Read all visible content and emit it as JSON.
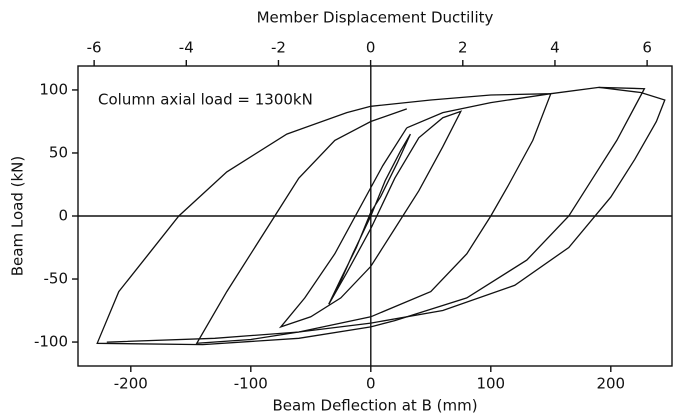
{
  "chart_data": {
    "type": "line",
    "annotation": "Column axial load = 1300kN",
    "xlabel": "Beam Deflection at B (mm)",
    "ylabel": "Beam Load (kN)",
    "x2label": "Member Displacement Ductility",
    "xlim": [
      -244,
      251
    ],
    "ylim": [
      -119,
      119
    ],
    "x2lim": [
      -6.35,
      6.54
    ],
    "xticks": [
      -200,
      -100,
      0,
      100,
      200
    ],
    "yticks": [
      -100,
      -50,
      0,
      50,
      100
    ],
    "x2ticks": [
      -6,
      -4,
      -2,
      0,
      2,
      4,
      6
    ],
    "series": [
      {
        "color": "#111111",
        "x": [
          0,
          12,
          25,
          33,
          22,
          8,
          0,
          -12,
          -25,
          -35,
          -28,
          -15,
          -5,
          0
        ],
        "values": [
          0,
          28,
          52,
          65,
          42,
          15,
          3,
          -25,
          -50,
          -70,
          -58,
          -30,
          -10,
          0
        ]
      },
      {
        "color": "#111111",
        "x": [
          -35,
          -20,
          0,
          20,
          40,
          60,
          75,
          60,
          40,
          20,
          0,
          -25,
          -50,
          -75,
          -55,
          -30,
          -10,
          10,
          30
        ],
        "values": [
          -70,
          -45,
          -10,
          30,
          62,
          78,
          83,
          55,
          20,
          -10,
          -40,
          -65,
          -80,
          -88,
          -65,
          -30,
          5,
          40,
          70
        ]
      },
      {
        "color": "#111111",
        "x": [
          30,
          60,
          100,
          150,
          135,
          115,
          100,
          80,
          50,
          0,
          -60,
          -100,
          -145,
          -120,
          -100,
          -80,
          -60,
          -30,
          0,
          30
        ],
        "values": [
          70,
          82,
          90,
          97,
          60,
          25,
          0,
          -30,
          -60,
          -80,
          -92,
          -98,
          -101,
          -60,
          -30,
          0,
          30,
          60,
          75,
          85
        ]
      },
      {
        "color": "#111111",
        "x": [
          150,
          190,
          228,
          205,
          185,
          165,
          130,
          80,
          20,
          0,
          -60,
          -140,
          -228,
          -210,
          -185,
          -160,
          -120,
          -70,
          -20,
          0,
          50,
          100,
          150
        ],
        "values": [
          97,
          102,
          101,
          60,
          30,
          0,
          -35,
          -65,
          -83,
          -88,
          -97,
          -102,
          -101,
          -60,
          -30,
          0,
          35,
          65,
          82,
          87,
          92,
          96,
          97
        ]
      },
      {
        "color": "#111111",
        "x": [
          190,
          225,
          245,
          238,
          220,
          200,
          165,
          120,
          60,
          0,
          -60,
          -130,
          -220
        ],
        "values": [
          102,
          98,
          92,
          75,
          45,
          15,
          -25,
          -55,
          -75,
          -85,
          -92,
          -97,
          -100
        ]
      }
    ]
  }
}
